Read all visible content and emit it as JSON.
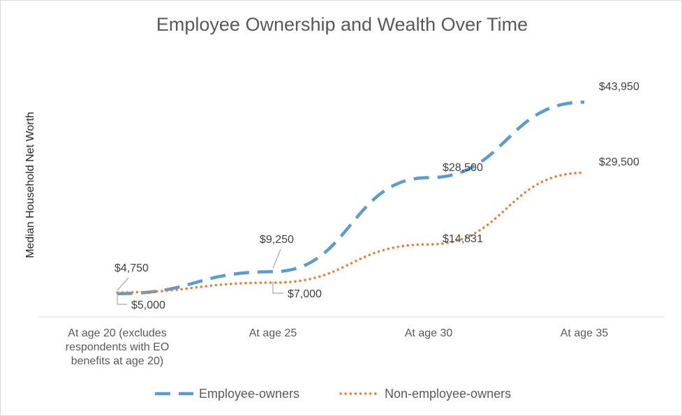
{
  "chart_data": {
    "type": "line",
    "title": "Employee Ownership and Wealth Over Time",
    "xlabel": "",
    "ylabel": "Median Household Net Worth",
    "categories": [
      [
        "At age 20 (excludes",
        "respondents with EO",
        "benefits at age 20)"
      ],
      [
        "At age 25"
      ],
      [
        "At age 30"
      ],
      [
        "At age 35"
      ]
    ],
    "ylim": [
      0,
      46000
    ],
    "grid": false,
    "legend_position": "bottom",
    "series": [
      {
        "name": "Employee-owners",
        "values": [
          4750,
          9250,
          28500,
          43950
        ],
        "labels": [
          "$4,750",
          "$9,250",
          "$28,500",
          "$43,950"
        ],
        "color": "#5b9bd5",
        "style": "dashed"
      },
      {
        "name": "Non-employee-owners",
        "values": [
          5000,
          7000,
          14831,
          29500
        ],
        "labels": [
          "$5,000",
          "$7,000",
          "$14,831",
          "$29,500"
        ],
        "color": "#ed7d31",
        "style": "dotted"
      }
    ]
  }
}
